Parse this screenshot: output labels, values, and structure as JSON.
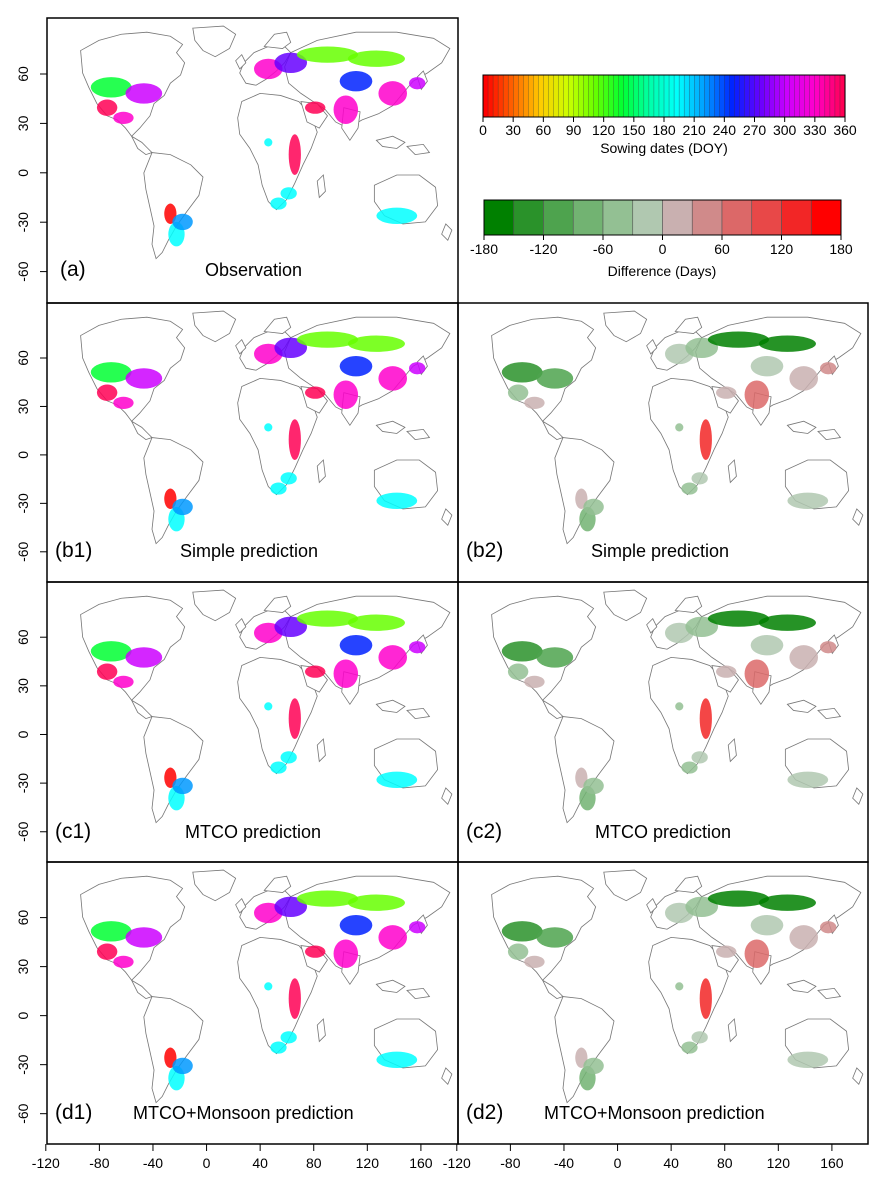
{
  "figure": {
    "panels": [
      {
        "id": "a",
        "label": "(a)",
        "title": "Observation",
        "kind": "sowing"
      },
      {
        "id": "b1",
        "label": "(b1)",
        "title": "Simple prediction",
        "kind": "sowing"
      },
      {
        "id": "b2",
        "label": "(b2)",
        "title": "Simple prediction",
        "kind": "difference"
      },
      {
        "id": "c1",
        "label": "(c1)",
        "title": "MTCO prediction",
        "kind": "sowing"
      },
      {
        "id": "c2",
        "label": "(c2)",
        "title": "MTCO prediction",
        "kind": "difference"
      },
      {
        "id": "d1",
        "label": "(d1)",
        "title": "MTCO+Monsoon prediction",
        "kind": "sowing"
      },
      {
        "id": "d2",
        "label": "(d2)",
        "title": "MTCO+Monsoon prediction",
        "kind": "difference"
      }
    ],
    "y_ticks": [
      "60",
      "30",
      "0",
      "-30",
      "-60"
    ],
    "x_ticks_left": [
      "-120",
      "-80",
      "-40",
      "0",
      "40",
      "80",
      "120",
      "160"
    ],
    "x_ticks_right": [
      "-120",
      "-80",
      "-40",
      "0",
      "40",
      "80",
      "120",
      "160"
    ],
    "sowing_colorbar": {
      "title": "Sowing dates (DOY)",
      "ticks": [
        "0",
        "30",
        "60",
        "90",
        "120",
        "150",
        "180",
        "210",
        "240",
        "270",
        "300",
        "330",
        "360"
      ],
      "colors": [
        "#ff0000",
        "#ff6600",
        "#ffcc00",
        "#ccff00",
        "#66ff00",
        "#00ff33",
        "#00ffaa",
        "#00ffff",
        "#0099ff",
        "#0022ff",
        "#6600ff",
        "#cc00ff",
        "#ff00cc",
        "#ff0055"
      ]
    },
    "difference_colorbar": {
      "title": "Difference (Days)",
      "ticks": [
        "-180",
        "-120",
        "-60",
        "0",
        "60",
        "120",
        "180"
      ],
      "colors": [
        "#008000",
        "#2a922a",
        "#4ea34e",
        "#72b372",
        "#93c093",
        "#b0c8b0",
        "#c9b0b0",
        "#d08a8a",
        "#dc6868",
        "#e84848",
        "#f22626",
        "#ff0000"
      ]
    },
    "colors": {
      "frame": "#000000",
      "coast": "#777777",
      "land_fill": "#ffffff"
    }
  }
}
